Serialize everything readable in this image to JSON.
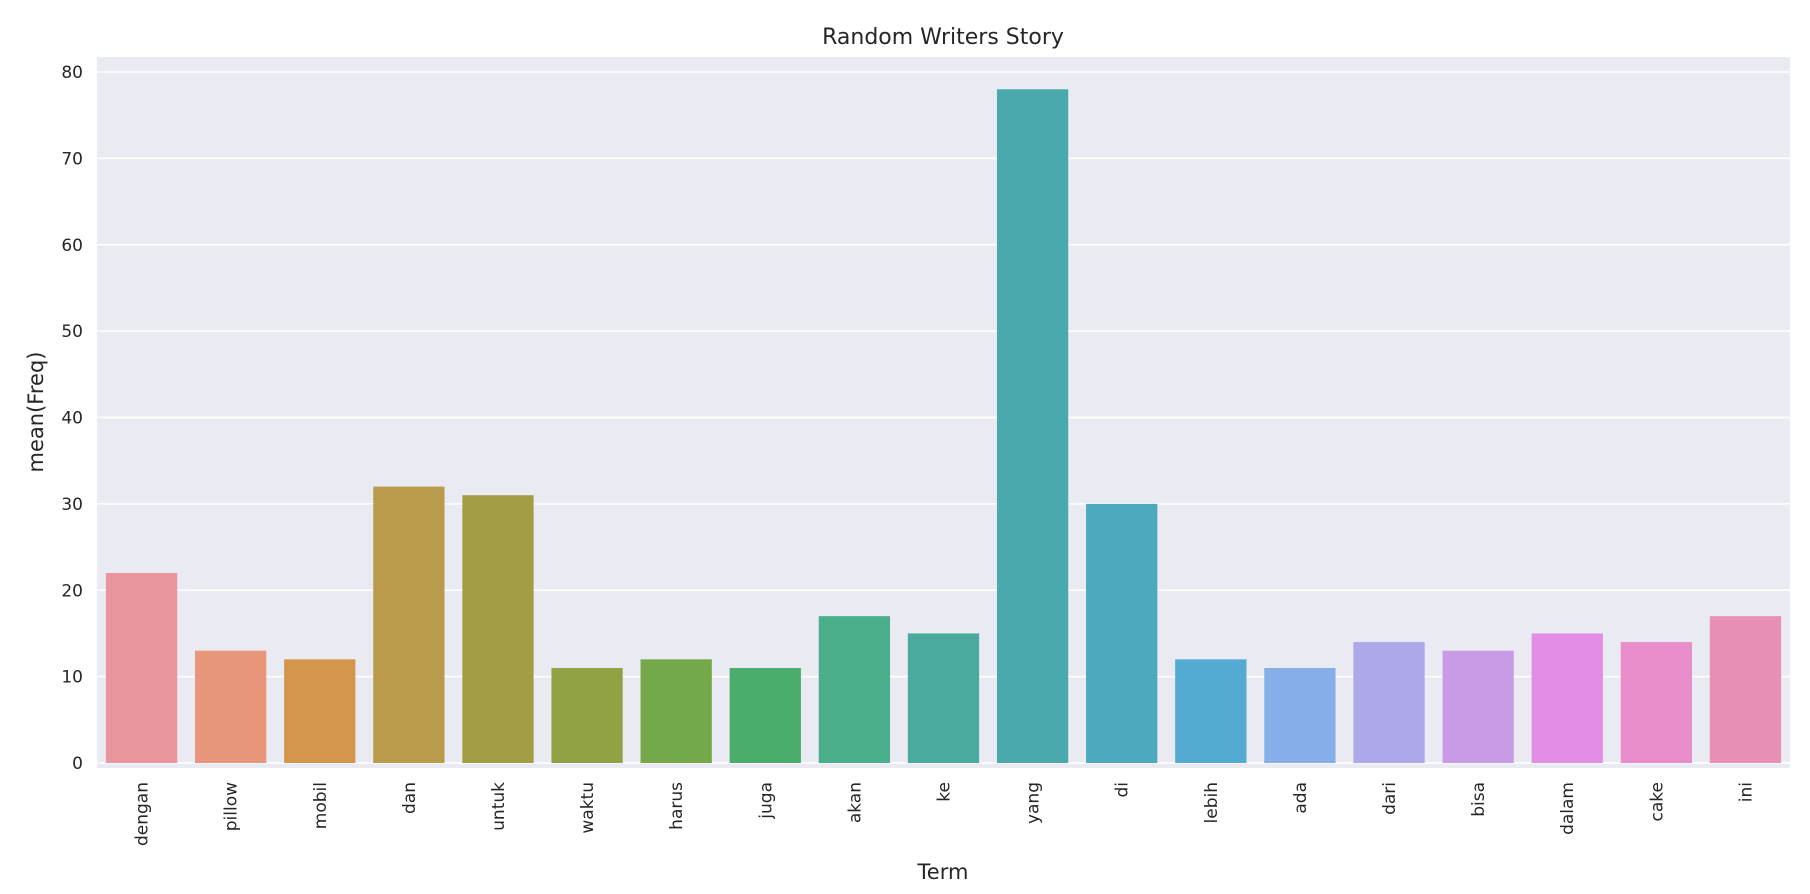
{
  "chart_data": {
    "type": "bar",
    "title": "Random Writers Story",
    "xlabel": "Term",
    "ylabel": "mean(Freq)",
    "categories": [
      "dengan",
      "pillow",
      "mobil",
      "dan",
      "untuk",
      "waktu",
      "harus",
      "juga",
      "akan",
      "ke",
      "yang",
      "di",
      "lebih",
      "ada",
      "dari",
      "bisa",
      "dalam",
      "cake",
      "ini"
    ],
    "values": [
      22,
      13,
      12,
      32,
      31,
      11,
      12,
      11,
      17,
      15,
      78,
      30,
      12,
      11,
      14,
      13,
      15,
      14,
      17
    ],
    "colors": [
      "#e8959e",
      "#e8967a",
      "#d4954d",
      "#b99b4b",
      "#a39d44",
      "#91a244",
      "#74a94a",
      "#4aad6b",
      "#4aae8b",
      "#4aaa9d",
      "#4aa9ad",
      "#4daabe",
      "#53aad3",
      "#86aee8",
      "#aca8ea",
      "#c99be6",
      "#e48de6",
      "#e88cca",
      "#e88fb5"
    ],
    "ylim": [
      0,
      80
    ],
    "yticks": [
      0,
      10,
      20,
      30,
      40,
      50,
      60,
      70,
      80
    ],
    "grid": true,
    "legend": "none"
  }
}
